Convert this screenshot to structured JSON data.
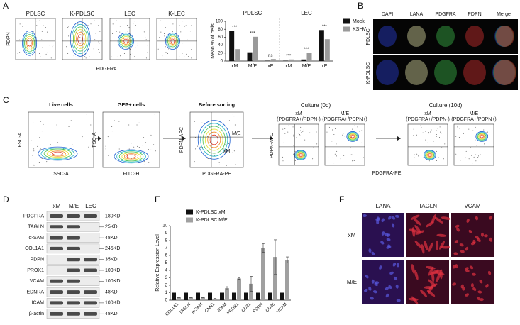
{
  "panel_labels": [
    "A",
    "B",
    "C",
    "D",
    "E",
    "F"
  ],
  "panel_a": {
    "flow_titles": [
      "PDLSC",
      "K-PDLSC",
      "LEC",
      "K-LEC"
    ],
    "y_label": "PDPN",
    "x_label": "PDGFRA"
  },
  "chart_data": [
    {
      "type": "bar",
      "group_labels": [
        "PDLSC",
        "LEC"
      ],
      "categories": [
        "xM",
        "M/E",
        "xE",
        "xM",
        "M/E",
        "xE"
      ],
      "ylabel": "Mean % of cells",
      "series": [
        {
          "name": "Mock",
          "color": "#111111",
          "values": [
            76,
            22,
            1,
            1,
            4,
            78
          ]
        },
        {
          "name": "KSHV",
          "color": "#9a9a9a",
          "values": [
            30,
            61,
            5,
            4,
            21,
            55
          ]
        }
      ],
      "significance": [
        "***",
        "***",
        "ns",
        "***",
        "***",
        "***"
      ],
      "ylim": [
        0,
        100
      ],
      "yticks": [
        0,
        20,
        40,
        60,
        80,
        100
      ]
    },
    {
      "type": "bar",
      "ylabel": "Relative Expression Level",
      "categories": [
        "COL1A1",
        "TAGLN",
        "α-SAM",
        "CNN1",
        "ICAM",
        "PROX1",
        "CD31",
        "PDPN",
        "CD36",
        "VCAM"
      ],
      "series": [
        {
          "name": "K-PDLSC xM",
          "color": "#111111",
          "values": [
            1,
            1,
            1,
            1,
            1,
            1,
            1,
            1,
            1,
            1
          ]
        },
        {
          "name": "K-PDLSC M/E",
          "color": "#a0a0a0",
          "values": [
            0.4,
            0.4,
            0.4,
            0.2,
            1.6,
            2.9,
            2.2,
            7.0,
            5.8,
            5.4
          ],
          "errors": [
            0.05,
            0.05,
            0.05,
            0.05,
            0.2,
            0.1,
            1.0,
            0.6,
            2.3,
            0.4
          ]
        }
      ],
      "ylim": [
        0,
        10
      ],
      "yticks": [
        0,
        1,
        2,
        3,
        4,
        5,
        6,
        7,
        8,
        9,
        10
      ]
    }
  ],
  "panel_b": {
    "columns": [
      "DAPI",
      "LANA",
      "PDGFRA",
      "PDPN",
      "Merge"
    ],
    "rows": [
      "PDLSC",
      "K-PDLSC"
    ]
  },
  "panel_c": {
    "steps": [
      {
        "title": "Live cells",
        "x_label": "SSC-A",
        "y_label": "FSC-A"
      },
      {
        "title": "GFP+ cells",
        "x_label": "FITC-H",
        "y_label": "FSC-A"
      },
      {
        "title": "Before sorting",
        "x_label": "PDGFRA-PE",
        "y_label": "PDPN-APC",
        "gates": [
          "M/E",
          "xM"
        ]
      }
    ],
    "culture_0d": {
      "title": "Culture (0d)",
      "plots": [
        {
          "name": "xM",
          "gate": "(PDGFRA+/PDPN-)"
        },
        {
          "name": "M/E",
          "gate": "(PDGFRA+/PDPN+)"
        }
      ]
    },
    "culture_10d": {
      "title": "Culture (10d)",
      "plots": [
        {
          "name": "xM",
          "gate": "(PDGFRA+/PDPN-)"
        },
        {
          "name": "M/E",
          "gate": "(PDGFRA+/PDPN+)"
        }
      ]
    },
    "culture_y_label": "PDPN-APC",
    "culture_x_label": "PDGFRA-PE"
  },
  "panel_d": {
    "columns": [
      "xM",
      "M/E",
      "LEC"
    ],
    "rows": [
      {
        "name": "PDGFRA",
        "marker": "180KD"
      },
      {
        "name": "TAGLN",
        "marker": "25KD"
      },
      {
        "name": "α-SAM",
        "marker": "48KD"
      },
      {
        "name": "COL1A1",
        "marker": "245KD"
      },
      {
        "name": "PDPN",
        "marker": "35KD"
      },
      {
        "name": "PROX1",
        "marker": "100KD"
      },
      {
        "name": "VCAM",
        "marker": "100KD"
      },
      {
        "name": "EDNRA",
        "marker": "48KD"
      },
      {
        "name": "ICAM",
        "marker": "100KD"
      },
      {
        "name": "β-actin",
        "marker": "48KD"
      }
    ]
  },
  "panel_f": {
    "columns": [
      "LANA",
      "TAGLN",
      "VCAM"
    ],
    "rows": [
      "xM",
      "M/E"
    ]
  }
}
